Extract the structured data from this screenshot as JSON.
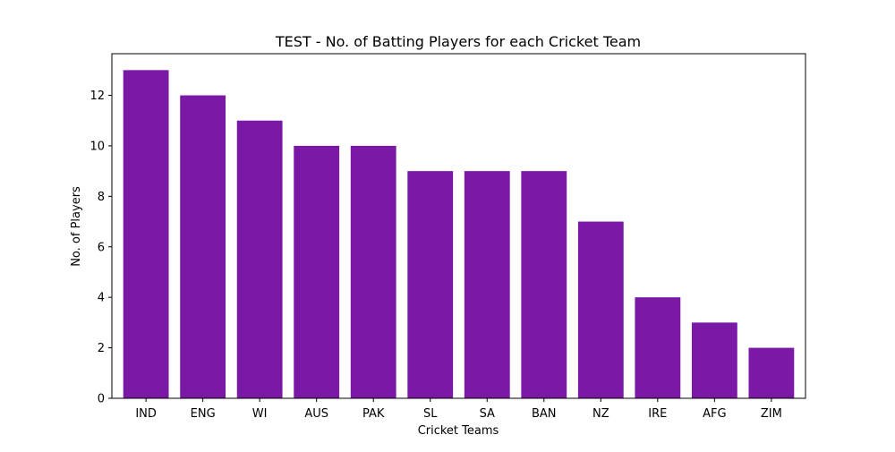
{
  "chart_data": {
    "type": "bar",
    "title": "TEST - No. of Batting Players for each Cricket Team",
    "xlabel": "Cricket Teams",
    "ylabel": "No. of Players",
    "categories": [
      "IND",
      "ENG",
      "WI",
      "AUS",
      "PAK",
      "SL",
      "SA",
      "BAN",
      "NZ",
      "IRE",
      "AFG",
      "ZIM"
    ],
    "values": [
      13,
      12,
      11,
      10,
      10,
      9,
      9,
      9,
      7,
      4,
      3,
      2
    ],
    "ylim": [
      0,
      13.65
    ],
    "yticks": [
      0,
      2,
      4,
      6,
      8,
      10,
      12
    ],
    "bar_color": "#7a19a6",
    "grid": false,
    "legend": "none"
  }
}
